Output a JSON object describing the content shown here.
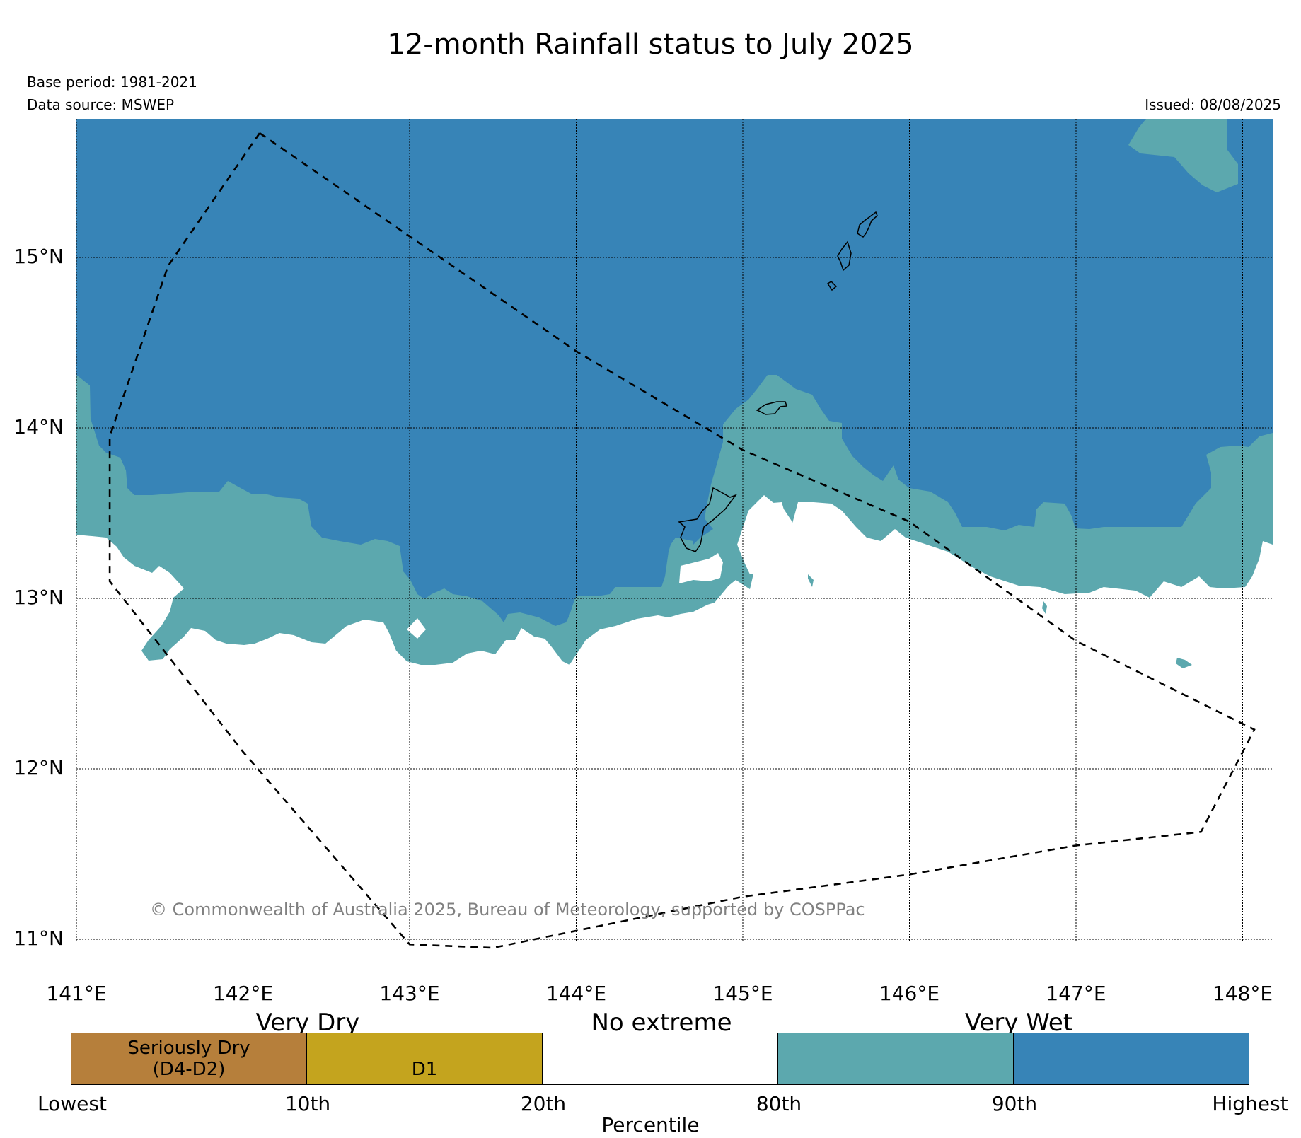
{
  "title": "12-month Rainfall status to July 2025",
  "meta": {
    "base_period": "Base period: 1981-2021",
    "data_source": "Data source: MSWEP",
    "issued": "Issued: 08/08/2025"
  },
  "copyright": "© Commonwealth of Australia 2025, Bureau of Meteorology, supported by COSPPac",
  "map": {
    "lon_ticks": [
      {
        "value": 141,
        "label": "141°E"
      },
      {
        "value": 142,
        "label": "142°E"
      },
      {
        "value": 143,
        "label": "143°E"
      },
      {
        "value": 144,
        "label": "144°E"
      },
      {
        "value": 145,
        "label": "145°E"
      },
      {
        "value": 146,
        "label": "146°E"
      },
      {
        "value": 147,
        "label": "147°E"
      },
      {
        "value": 148,
        "label": "148°E"
      }
    ],
    "lat_ticks": [
      {
        "value": 15,
        "label": "15°N"
      },
      {
        "value": 14,
        "label": "14°N"
      },
      {
        "value": 13,
        "label": "13°N"
      },
      {
        "value": 12,
        "label": "12°N"
      },
      {
        "value": 11,
        "label": "11°N"
      }
    ],
    "lon_range": [
      141,
      148.2
    ],
    "lat_range": [
      10.85,
      15.8
    ],
    "grid": true,
    "colors": {
      "very_wet_90": "#3784b7",
      "very_wet_80": "#5ca8ae",
      "no_extreme": "#ffffff",
      "d1": "#c4a41e",
      "seriously_dry": "#b67f3b",
      "boundary": "#000000"
    },
    "eez_boundary": [
      [
        142.1,
        15.73
      ],
      [
        141.55,
        14.95
      ],
      [
        141.2,
        13.95
      ],
      [
        141.2,
        13.1
      ],
      [
        142.0,
        12.1
      ],
      [
        143.0,
        10.97
      ],
      [
        143.5,
        10.95
      ],
      [
        145.0,
        11.25
      ],
      [
        146.0,
        11.38
      ],
      [
        147.0,
        11.55
      ],
      [
        147.75,
        11.63
      ],
      [
        148.07,
        12.23
      ],
      [
        147.0,
        12.75
      ],
      [
        146.0,
        13.45
      ],
      [
        145.0,
        13.87
      ],
      [
        144.0,
        14.45
      ],
      [
        142.1,
        15.73
      ]
    ]
  },
  "legend": {
    "categories": {
      "very_dry": "Very Dry",
      "no_extreme": "No extreme",
      "very_wet": "Very Wet"
    },
    "segments": [
      {
        "line1": "Seriously Dry",
        "line2": "(D4-D2)",
        "color": "#b67f3b"
      },
      {
        "line1": "D1",
        "line2": "",
        "color": "#c4a41e"
      },
      {
        "line1": "",
        "line2": "",
        "color": "#ffffff"
      },
      {
        "line1": "",
        "line2": "",
        "color": "#5ca8ae"
      },
      {
        "line1": "",
        "line2": "",
        "color": "#3784b7"
      }
    ],
    "ticks": [
      "Lowest",
      "10th",
      "20th",
      "80th",
      "90th",
      "Highest"
    ],
    "xlabel": "Percentile"
  }
}
